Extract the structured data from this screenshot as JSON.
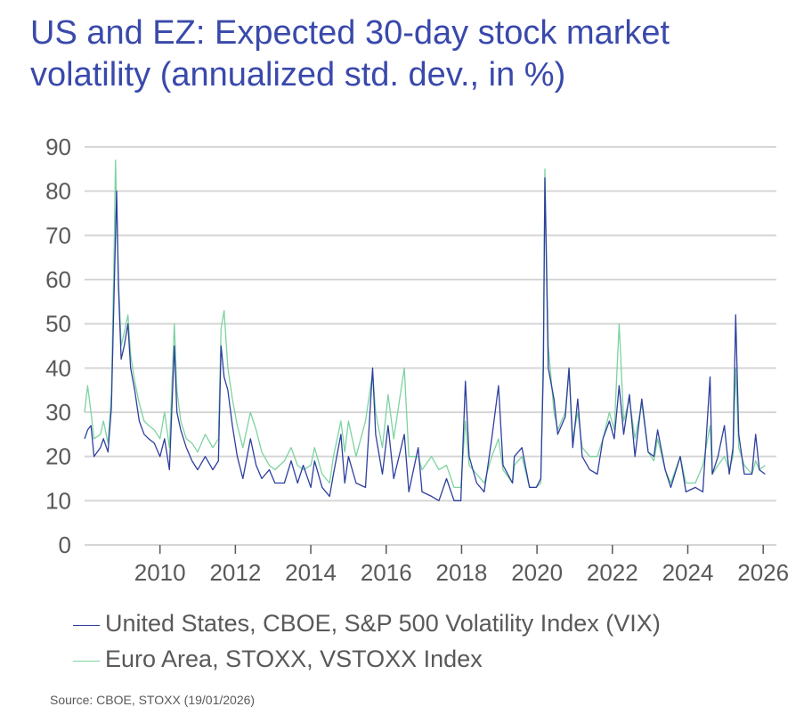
{
  "chart_data": {
    "type": "line",
    "title": "US and EZ: Expected 30-day stock market volatility (annualized std. dev., in %)",
    "xlabel": "",
    "ylabel": "",
    "xlim": [
      2008.0,
      2026.4
    ],
    "ylim": [
      0,
      90
    ],
    "yticks": [
      "0",
      "10",
      "20",
      "30",
      "40",
      "50",
      "60",
      "70",
      "80",
      "90"
    ],
    "xticks": [
      "2010",
      "2012",
      "2014",
      "2016",
      "2018",
      "2020",
      "2022",
      "2024",
      "2026"
    ],
    "grid": "horizontal",
    "legend_position": "bottom",
    "source": "Source: CBOE, STOXX (19/01/2026)",
    "series": [
      {
        "name": "United States, CBOE, S&P 500 Volatility Index (VIX)",
        "color": "#2e3f9e",
        "points": [
          [
            2008.0,
            24
          ],
          [
            2008.08,
            26
          ],
          [
            2008.17,
            27
          ],
          [
            2008.25,
            20
          ],
          [
            2008.42,
            22
          ],
          [
            2008.5,
            24
          ],
          [
            2008.62,
            21
          ],
          [
            2008.71,
            31
          ],
          [
            2008.79,
            60
          ],
          [
            2008.85,
            80
          ],
          [
            2008.9,
            58
          ],
          [
            2008.97,
            42
          ],
          [
            2009.05,
            45
          ],
          [
            2009.15,
            50
          ],
          [
            2009.22,
            40
          ],
          [
            2009.33,
            35
          ],
          [
            2009.45,
            28
          ],
          [
            2009.58,
            25
          ],
          [
            2009.7,
            24
          ],
          [
            2009.85,
            23
          ],
          [
            2010.0,
            20
          ],
          [
            2010.12,
            24
          ],
          [
            2010.25,
            17
          ],
          [
            2010.38,
            45
          ],
          [
            2010.45,
            30
          ],
          [
            2010.55,
            26
          ],
          [
            2010.7,
            22
          ],
          [
            2010.85,
            19
          ],
          [
            2011.0,
            17
          ],
          [
            2011.2,
            20
          ],
          [
            2011.4,
            17
          ],
          [
            2011.55,
            19
          ],
          [
            2011.62,
            45
          ],
          [
            2011.7,
            38
          ],
          [
            2011.8,
            35
          ],
          [
            2011.92,
            27
          ],
          [
            2012.05,
            20
          ],
          [
            2012.2,
            15
          ],
          [
            2012.4,
            24
          ],
          [
            2012.55,
            18
          ],
          [
            2012.7,
            15
          ],
          [
            2012.9,
            17
          ],
          [
            2013.05,
            14
          ],
          [
            2013.3,
            14
          ],
          [
            2013.48,
            19
          ],
          [
            2013.65,
            14
          ],
          [
            2013.8,
            18
          ],
          [
            2014.0,
            13
          ],
          [
            2014.1,
            19
          ],
          [
            2014.3,
            13
          ],
          [
            2014.5,
            11
          ],
          [
            2014.6,
            16
          ],
          [
            2014.8,
            25
          ],
          [
            2014.9,
            14
          ],
          [
            2015.0,
            20
          ],
          [
            2015.2,
            14
          ],
          [
            2015.45,
            13
          ],
          [
            2015.64,
            40
          ],
          [
            2015.72,
            25
          ],
          [
            2015.9,
            16
          ],
          [
            2016.05,
            27
          ],
          [
            2016.2,
            15
          ],
          [
            2016.48,
            25
          ],
          [
            2016.6,
            12
          ],
          [
            2016.85,
            22
          ],
          [
            2016.95,
            12
          ],
          [
            2017.2,
            11
          ],
          [
            2017.4,
            10
          ],
          [
            2017.6,
            15
          ],
          [
            2017.8,
            10
          ],
          [
            2017.98,
            10
          ],
          [
            2018.1,
            37
          ],
          [
            2018.2,
            20
          ],
          [
            2018.4,
            14
          ],
          [
            2018.6,
            12
          ],
          [
            2018.8,
            24
          ],
          [
            2018.98,
            36
          ],
          [
            2019.1,
            18
          ],
          [
            2019.35,
            14
          ],
          [
            2019.4,
            20
          ],
          [
            2019.6,
            22
          ],
          [
            2019.8,
            13
          ],
          [
            2019.98,
            13
          ],
          [
            2020.1,
            15
          ],
          [
            2020.17,
            40
          ],
          [
            2020.21,
            83
          ],
          [
            2020.3,
            40
          ],
          [
            2020.45,
            33
          ],
          [
            2020.55,
            25
          ],
          [
            2020.75,
            29
          ],
          [
            2020.85,
            40
          ],
          [
            2020.95,
            22
          ],
          [
            2021.08,
            33
          ],
          [
            2021.2,
            20
          ],
          [
            2021.4,
            17
          ],
          [
            2021.6,
            16
          ],
          [
            2021.75,
            24
          ],
          [
            2021.92,
            28
          ],
          [
            2022.05,
            24
          ],
          [
            2022.18,
            36
          ],
          [
            2022.3,
            25
          ],
          [
            2022.45,
            34
          ],
          [
            2022.6,
            20
          ],
          [
            2022.78,
            33
          ],
          [
            2022.95,
            21
          ],
          [
            2023.1,
            20
          ],
          [
            2023.2,
            26
          ],
          [
            2023.4,
            17
          ],
          [
            2023.55,
            13
          ],
          [
            2023.8,
            20
          ],
          [
            2023.95,
            12
          ],
          [
            2024.2,
            13
          ],
          [
            2024.4,
            12
          ],
          [
            2024.59,
            38
          ],
          [
            2024.65,
            16
          ],
          [
            2024.8,
            20
          ],
          [
            2024.97,
            27
          ],
          [
            2025.1,
            16
          ],
          [
            2025.2,
            22
          ],
          [
            2025.27,
            52
          ],
          [
            2025.35,
            25
          ],
          [
            2025.5,
            16
          ],
          [
            2025.7,
            16
          ],
          [
            2025.8,
            25
          ],
          [
            2025.9,
            17
          ],
          [
            2026.05,
            16
          ]
        ]
      },
      {
        "name": "Euro Area, STOXX, VSTOXX Index",
        "color": "#7dd3a0",
        "points": [
          [
            2008.0,
            30
          ],
          [
            2008.08,
            36
          ],
          [
            2008.17,
            30
          ],
          [
            2008.25,
            24
          ],
          [
            2008.42,
            25
          ],
          [
            2008.5,
            28
          ],
          [
            2008.62,
            23
          ],
          [
            2008.71,
            34
          ],
          [
            2008.79,
            70
          ],
          [
            2008.82,
            87
          ],
          [
            2008.9,
            60
          ],
          [
            2008.97,
            45
          ],
          [
            2009.05,
            48
          ],
          [
            2009.15,
            52
          ],
          [
            2009.22,
            43
          ],
          [
            2009.33,
            37
          ],
          [
            2009.45,
            32
          ],
          [
            2009.58,
            28
          ],
          [
            2009.7,
            27
          ],
          [
            2009.85,
            26
          ],
          [
            2010.0,
            24
          ],
          [
            2010.12,
            30
          ],
          [
            2010.25,
            22
          ],
          [
            2010.38,
            50
          ],
          [
            2010.45,
            35
          ],
          [
            2010.55,
            28
          ],
          [
            2010.7,
            24
          ],
          [
            2010.85,
            23
          ],
          [
            2011.0,
            21
          ],
          [
            2011.2,
            25
          ],
          [
            2011.4,
            22
          ],
          [
            2011.55,
            24
          ],
          [
            2011.62,
            49
          ],
          [
            2011.7,
            53
          ],
          [
            2011.8,
            40
          ],
          [
            2011.92,
            33
          ],
          [
            2012.05,
            27
          ],
          [
            2012.2,
            22
          ],
          [
            2012.4,
            30
          ],
          [
            2012.55,
            26
          ],
          [
            2012.7,
            21
          ],
          [
            2012.9,
            18
          ],
          [
            2013.05,
            17
          ],
          [
            2013.3,
            19
          ],
          [
            2013.48,
            22
          ],
          [
            2013.65,
            18
          ],
          [
            2013.8,
            17
          ],
          [
            2014.0,
            18
          ],
          [
            2014.1,
            22
          ],
          [
            2014.3,
            16
          ],
          [
            2014.5,
            14
          ],
          [
            2014.6,
            20
          ],
          [
            2014.8,
            28
          ],
          [
            2014.9,
            21
          ],
          [
            2015.0,
            28
          ],
          [
            2015.2,
            20
          ],
          [
            2015.45,
            28
          ],
          [
            2015.64,
            39
          ],
          [
            2015.72,
            30
          ],
          [
            2015.9,
            22
          ],
          [
            2016.05,
            34
          ],
          [
            2016.2,
            24
          ],
          [
            2016.48,
            40
          ],
          [
            2016.6,
            20
          ],
          [
            2016.85,
            20
          ],
          [
            2016.95,
            17
          ],
          [
            2017.2,
            20
          ],
          [
            2017.4,
            17
          ],
          [
            2017.6,
            18
          ],
          [
            2017.8,
            13
          ],
          [
            2017.98,
            13
          ],
          [
            2018.1,
            28
          ],
          [
            2018.2,
            18
          ],
          [
            2018.4,
            16
          ],
          [
            2018.6,
            14
          ],
          [
            2018.8,
            20
          ],
          [
            2018.98,
            24
          ],
          [
            2019.1,
            17
          ],
          [
            2019.35,
            14
          ],
          [
            2019.4,
            18
          ],
          [
            2019.6,
            20
          ],
          [
            2019.8,
            13
          ],
          [
            2019.98,
            13
          ],
          [
            2020.1,
            14
          ],
          [
            2020.17,
            45
          ],
          [
            2020.21,
            85
          ],
          [
            2020.3,
            45
          ],
          [
            2020.45,
            30
          ],
          [
            2020.55,
            26
          ],
          [
            2020.75,
            30
          ],
          [
            2020.85,
            40
          ],
          [
            2020.95,
            24
          ],
          [
            2021.08,
            30
          ],
          [
            2021.2,
            22
          ],
          [
            2021.4,
            20
          ],
          [
            2021.6,
            20
          ],
          [
            2021.75,
            24
          ],
          [
            2021.92,
            30
          ],
          [
            2022.05,
            26
          ],
          [
            2022.18,
            50
          ],
          [
            2022.3,
            28
          ],
          [
            2022.45,
            33
          ],
          [
            2022.6,
            24
          ],
          [
            2022.78,
            32
          ],
          [
            2022.95,
            21
          ],
          [
            2023.1,
            19
          ],
          [
            2023.2,
            24
          ],
          [
            2023.4,
            17
          ],
          [
            2023.55,
            14
          ],
          [
            2023.8,
            20
          ],
          [
            2023.95,
            14
          ],
          [
            2024.2,
            14
          ],
          [
            2024.4,
            18
          ],
          [
            2024.59,
            27
          ],
          [
            2024.65,
            16
          ],
          [
            2024.8,
            18
          ],
          [
            2024.97,
            20
          ],
          [
            2025.1,
            17
          ],
          [
            2025.2,
            20
          ],
          [
            2025.27,
            40
          ],
          [
            2025.35,
            22
          ],
          [
            2025.5,
            18
          ],
          [
            2025.7,
            16
          ],
          [
            2025.8,
            19
          ],
          [
            2025.9,
            17
          ],
          [
            2026.05,
            18
          ]
        ]
      }
    ]
  }
}
